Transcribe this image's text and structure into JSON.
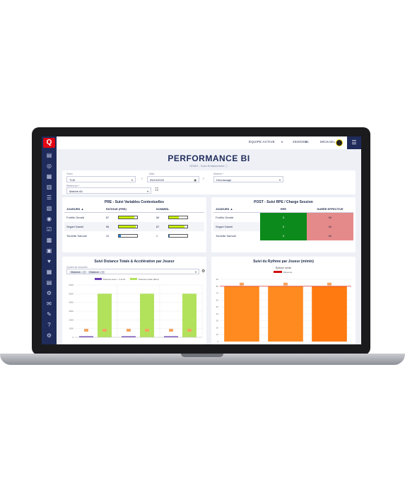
{
  "app": {
    "logo": "Q",
    "title": "PERFORMANCE BI",
    "subtitle": "DEMO - Suivi Entrainement"
  },
  "topbar": {
    "team": "ÉQUIPE ACTIVE",
    "season": "2020/2021",
    "user": "MICKAEL",
    "menu_icon": "sliders-icon"
  },
  "sidebar": {
    "icons": [
      "home-icon",
      "users-icon",
      "calendar-icon",
      "chart-icon",
      "list-icon",
      "file-icon",
      "camera-icon",
      "check-icon",
      "stats-icon",
      "clipboard-icon",
      "heart-icon",
      "table-icon",
      "doc-icon",
      "settings-icon",
      "mail-icon",
      "chat-icon",
      "help-icon",
      "gear-icon"
    ]
  },
  "filters": {
    "team_label": "Team",
    "team_value": "TLM",
    "date_label": "Date",
    "date_value": "05/10/2020",
    "session_label": "Séance *",
    "session_value": "Décrassage",
    "ref_label": "Référence *",
    "ref_value": "Matche All"
  },
  "pre_panel": {
    "title": "PRE - Suivi Variables Contextuelles",
    "headers": [
      "JOUEURS ▲",
      "FATIGUE (PRE)",
      "SOMMEIL"
    ],
    "rows": [
      {
        "name": "Fortillo Gerald",
        "fatigue": "87",
        "fatigue_pct": 0.87,
        "sommeil": "56",
        "sommeil_pct": 0.56
      },
      {
        "name": "Segart Daniel",
        "fatigue": "96",
        "fatigue_pct": 0.96,
        "sommeil": "87",
        "sommeil_pct": 0.87
      },
      {
        "name": "Tomette Samuel",
        "fatigue": "12",
        "fatigue_pct": 0.12,
        "sommeil": "1",
        "sommeil_pct": 0.01
      }
    ]
  },
  "post_panel": {
    "title": "POST - Suivi RPE / Charge Session",
    "headers": [
      "JOUEURS ▲",
      "RPE",
      "DURÉE EFFECTIVE"
    ],
    "rows": [
      {
        "name": "Fortillo Gerald",
        "rpe": "3",
        "duree": "60"
      },
      {
        "name": "Segart Daniel",
        "rpe": "3",
        "duree": "60"
      },
      {
        "name": "Tomette Samuel",
        "rpe": "3",
        "duree": "60"
      }
    ]
  },
  "distance_panel": {
    "title": "Suivi Distance Totale & Accélération par Joueur",
    "select_label": "Cycles de données",
    "chips": [
      "Distance...",
      "Distance..."
    ]
  },
  "rythme_panel": {
    "title": "Suivi du Rythme par Joueur (m/min)"
  },
  "colors": {
    "navy": "#1f2b5b",
    "red": "#e30613",
    "lime": "#b2e25c",
    "purple": "#6a3fb5",
    "orange": "#ff8a1f",
    "green": "#0d8a1c",
    "pink": "#e58a8a"
  },
  "chart_data": [
    {
      "type": "bar",
      "title": "Suivi Distance Totale & Accélération par Joueur",
      "categories": [
        "",
        "",
        ""
      ],
      "series": [
        {
          "name": "Distance avec > 3 km/h",
          "values": [
            40,
            40,
            40
          ]
        },
        {
          "name": "Distance totale (Bout)",
          "values": [
            5000,
            5000,
            5000
          ]
        }
      ],
      "ylim": [
        0,
        6000
      ],
      "yticks": [
        "0",
        "1000",
        "2000",
        "3000",
        "4000",
        "5000",
        "6000"
      ]
    },
    {
      "type": "bar",
      "title": "Suivi du Rythme par Joueur (m/min)",
      "categories": [
        "",
        "",
        ""
      ],
      "series": [
        {
          "name": "Rythme m/min",
          "values": [
            80,
            80,
            80
          ]
        }
      ],
      "reference_line": {
        "name": "Moyenne",
        "value": 80
      },
      "ylim": [
        0,
        90
      ],
      "yticks": [
        "0",
        "10",
        "20",
        "30",
        "40",
        "50",
        "60",
        "70",
        "80",
        "90"
      ]
    }
  ]
}
